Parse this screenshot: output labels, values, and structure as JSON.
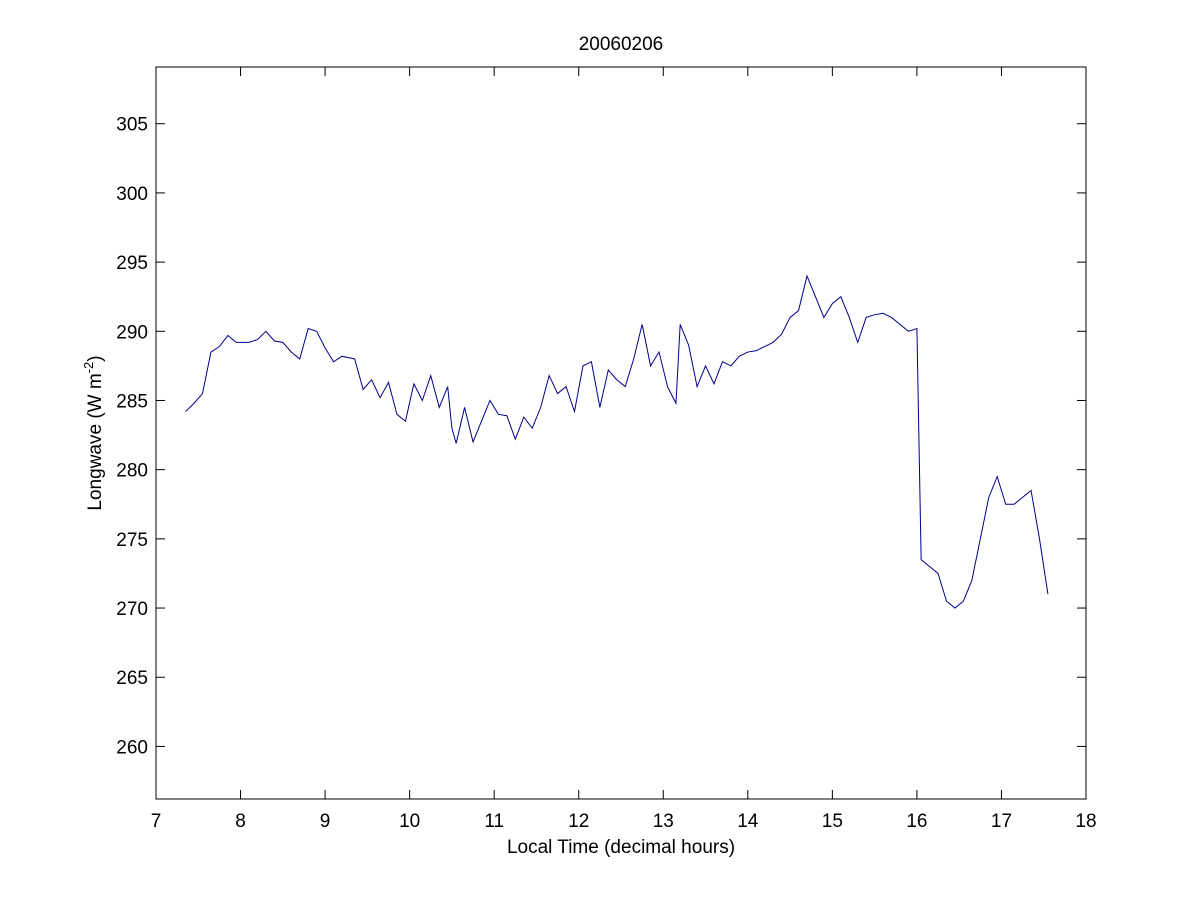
{
  "chart_data": {
    "type": "line",
    "title": "20060206",
    "xlabel": "Local Time (decimal hours)",
    "ylabel": {
      "main": "Longwave (W m",
      "sup": "-2",
      "end": ")"
    },
    "xlim": [
      7,
      18
    ],
    "xticks": [
      7,
      8,
      9,
      10,
      11,
      12,
      13,
      14,
      15,
      16,
      17,
      18
    ],
    "ylim": [
      256.2,
      309.1
    ],
    "yticks": [
      260,
      265,
      270,
      275,
      280,
      285,
      290,
      295,
      300,
      305
    ],
    "series": [
      {
        "color": "#00008b",
        "x": [
          7.35,
          7.45,
          7.55,
          7.65,
          7.75,
          7.85,
          7.95,
          8.1,
          8.2,
          8.3,
          8.4,
          8.5,
          8.6,
          8.7,
          8.8,
          8.9,
          9.0,
          9.1,
          9.2,
          9.35,
          9.45,
          9.55,
          9.65,
          9.75,
          9.85,
          9.95,
          10.05,
          10.15,
          10.25,
          10.35,
          10.45,
          10.5,
          10.55,
          10.65,
          10.75,
          10.85,
          10.95,
          11.05,
          11.15,
          11.25,
          11.35,
          11.45,
          11.55,
          11.65,
          11.75,
          11.85,
          11.95,
          12.05,
          12.15,
          12.25,
          12.35,
          12.45,
          12.55,
          12.65,
          12.75,
          12.85,
          12.95,
          13.05,
          13.15,
          13.2,
          13.3,
          13.4,
          13.5,
          13.6,
          13.7,
          13.8,
          13.9,
          14.0,
          14.1,
          14.2,
          14.3,
          14.4,
          14.5,
          14.6,
          14.7,
          14.8,
          14.9,
          15.0,
          15.1,
          15.2,
          15.3,
          15.4,
          15.5,
          15.6,
          15.7,
          15.8,
          15.9,
          16.0,
          16.05,
          16.15,
          16.25,
          16.35,
          16.45,
          16.55,
          16.65,
          16.75,
          16.85,
          16.95,
          17.05,
          17.15,
          17.25,
          17.35,
          17.45,
          17.55
        ],
        "values": [
          284.2,
          284.8,
          285.5,
          288.5,
          288.9,
          289.7,
          289.2,
          289.2,
          289.4,
          290.0,
          289.3,
          289.2,
          288.5,
          288.0,
          290.2,
          290.0,
          288.8,
          287.8,
          288.2,
          288.0,
          285.8,
          286.5,
          285.2,
          286.3,
          284.0,
          283.5,
          286.2,
          285.0,
          286.8,
          284.5,
          286.0,
          283.0,
          281.9,
          284.5,
          282.0,
          283.5,
          285.0,
          284.0,
          283.9,
          282.2,
          283.8,
          283.0,
          284.5,
          286.8,
          285.5,
          286.0,
          284.2,
          287.5,
          287.8,
          284.5,
          287.2,
          286.5,
          286.0,
          288.0,
          290.5,
          287.5,
          288.5,
          286.0,
          284.8,
          290.5,
          289.0,
          286.0,
          287.5,
          286.2,
          287.8,
          287.5,
          288.2,
          288.5,
          288.6,
          288.9,
          289.2,
          289.8,
          291.0,
          291.5,
          294.0,
          292.5,
          291.0,
          292.0,
          292.5,
          291.0,
          289.2,
          291.0,
          291.2,
          291.3,
          291.0,
          290.5,
          290.0,
          290.2,
          273.5,
          273.0,
          272.5,
          270.5,
          270.0,
          270.5,
          272.0,
          275.0,
          278.0,
          279.5,
          277.5,
          277.5,
          278.0,
          278.5,
          275.0,
          271.0
        ]
      }
    ]
  }
}
